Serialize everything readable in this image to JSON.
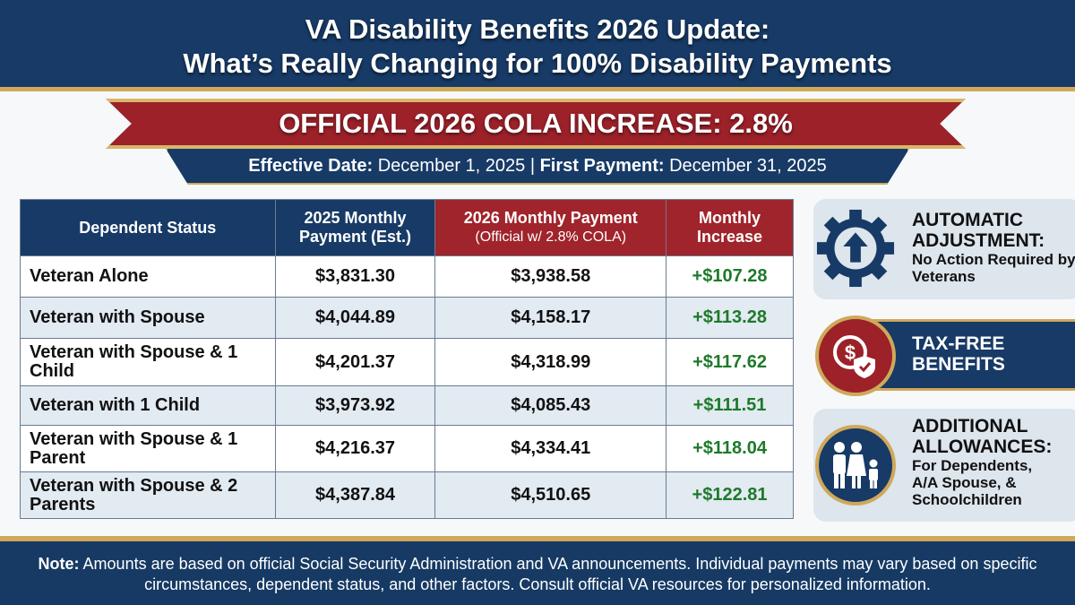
{
  "header": {
    "title_line1": "VA Disability Benefits 2026 Update:",
    "title_line2": "What’s Really Changing for 100% Disability Payments"
  },
  "banner": {
    "cola": "OFFICIAL 2026 COLA INCREASE: 2.8%",
    "effective_label": "Effective Date:",
    "effective_value": "December 1, 2025",
    "separator": "|",
    "first_payment_label": "First Payment:",
    "first_payment_value": "December 31, 2025"
  },
  "table": {
    "headers": [
      {
        "label": "Dependent Status",
        "sub": ""
      },
      {
        "label": "2025 Monthly",
        "sub": "Payment (Est.)"
      },
      {
        "label": "2026 Monthly Payment",
        "sub": "(Official w/ 2.8% COLA)"
      },
      {
        "label": "Monthly",
        "sub": "Increase"
      }
    ],
    "rows": [
      {
        "status": "Veteran Alone",
        "pay2025": "$3,831.30",
        "pay2026": "$3,938.58",
        "increase": "+$107.28"
      },
      {
        "status": "Veteran with Spouse",
        "pay2025": "$4,044.89",
        "pay2026": "$4,158.17",
        "increase": "+$113.28"
      },
      {
        "status": "Veteran with Spouse & 1 Child",
        "pay2025": "$4,201.37",
        "pay2026": "$4,318.99",
        "increase": "+$117.62"
      },
      {
        "status": "Veteran with 1 Child",
        "pay2025": "$3,973.92",
        "pay2026": "$4,085.43",
        "increase": "+$111.51"
      },
      {
        "status": "Veteran with Spouse & 1 Parent",
        "pay2025": "$4,216.37",
        "pay2026": "$4,334.41",
        "increase": "+$118.04"
      },
      {
        "status": "Veteran with Spouse & 2 Parents",
        "pay2025": "$4,387.84",
        "pay2026": "$4,510.65",
        "increase": "+$122.81"
      }
    ]
  },
  "side": [
    {
      "title": "AUTOMATIC ADJUSTMENT:",
      "desc": "No Action Required by Veterans",
      "icon": "gear-up-arrow-icon"
    },
    {
      "title": "TAX-FREE BENEFITS",
      "desc": "",
      "icon": "dollar-shield-icon"
    },
    {
      "title": "ADDITIONAL ALLOWANCES:",
      "desc": "For Dependents, A/A Spouse, & Schoolchildren",
      "icon": "family-icon"
    }
  ],
  "footer": {
    "note_label": "Note:",
    "note": "Amounts are based on official Social Security Administration and VA announcements. Individual payments may vary based on specific circumstances, dependent status, and other factors. Consult official VA resources for personalized information."
  },
  "colors": {
    "navy": "#173a66",
    "red": "#9c2129",
    "gold": "#cfa85a",
    "green": "#1d7a2a"
  }
}
